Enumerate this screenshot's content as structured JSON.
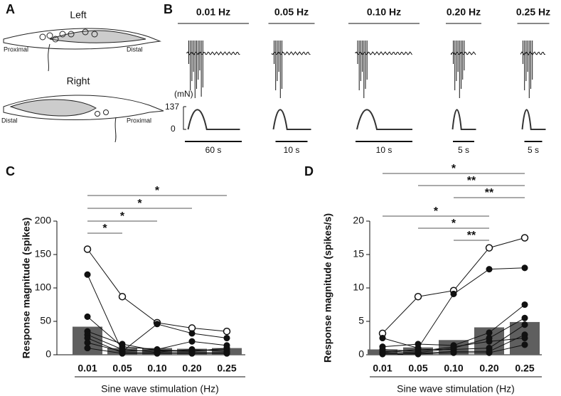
{
  "panel_a": {
    "label": "A",
    "top": {
      "title": "Left",
      "proximal": "Proximal",
      "distal": "Distal"
    },
    "bottom": {
      "title": "Right",
      "distal": "Distal",
      "proximal": "Proximal"
    }
  },
  "panel_b": {
    "label": "B",
    "frequencies": [
      "0.01 Hz",
      "0.05 Hz",
      "0.10 Hz",
      "0.20 Hz",
      "0.25 Hz"
    ],
    "force_unit": "(mN)",
    "force_top": "137",
    "force_bottom": "0",
    "time_bars": [
      "60 s",
      "10 s",
      "10 s",
      "5 s",
      "5 s"
    ]
  },
  "chart_data": [
    {
      "type": "bar",
      "panel": "C",
      "ylabel": "Response magnitude (spikes)",
      "xlabel": "Sine wave stimulation (Hz)",
      "categories": [
        "0.01",
        "0.05",
        "0.10",
        "0.20",
        "0.25"
      ],
      "values": [
        42,
        10,
        10,
        9,
        10
      ],
      "color": "#5f5f5f",
      "ylim": [
        0,
        200
      ],
      "yticks": [
        0,
        50,
        100,
        150,
        200
      ],
      "series": [
        {
          "marker": "open",
          "values": [
            158,
            87,
            48,
            40,
            35
          ]
        },
        {
          "marker": "filled",
          "values": [
            120,
            5,
            46,
            32,
            25
          ]
        },
        {
          "marker": "filled",
          "values": [
            57,
            12,
            8,
            20,
            14
          ]
        },
        {
          "marker": "filled",
          "values": [
            35,
            16,
            6,
            5,
            10
          ]
        },
        {
          "marker": "filled",
          "values": [
            30,
            8,
            4,
            8,
            5
          ]
        },
        {
          "marker": "filled",
          "values": [
            25,
            3,
            3,
            3,
            3
          ]
        },
        {
          "marker": "filled",
          "values": [
            18,
            5,
            7,
            6,
            8
          ]
        },
        {
          "marker": "filled",
          "values": [
            10,
            2,
            2,
            2,
            2
          ]
        }
      ],
      "significance": [
        {
          "from": "0.01",
          "to": "0.25",
          "label": "*"
        },
        {
          "from": "0.01",
          "to": "0.20",
          "label": "*"
        },
        {
          "from": "0.01",
          "to": "0.10",
          "label": "*"
        },
        {
          "from": "0.01",
          "to": "0.05",
          "label": "*"
        }
      ]
    },
    {
      "type": "bar",
      "panel": "D",
      "ylabel": "Response magnitude (spikes/s)",
      "xlabel": "Sine wave stimulation (Hz)",
      "categories": [
        "0.01",
        "0.05",
        "0.10",
        "0.20",
        "0.25"
      ],
      "values": [
        0.8,
        1.1,
        2.2,
        4.1,
        4.9
      ],
      "color": "#5f5f5f",
      "ylim": [
        0,
        20
      ],
      "yticks": [
        0,
        5,
        10,
        15,
        20
      ],
      "series": [
        {
          "marker": "open",
          "values": [
            3.2,
            8.7,
            9.6,
            16.0,
            17.5
          ]
        },
        {
          "marker": "filled",
          "values": [
            2.5,
            1.0,
            9.1,
            12.8,
            13.0
          ]
        },
        {
          "marker": "filled",
          "values": [
            1.2,
            1.6,
            1.4,
            3.3,
            7.5
          ]
        },
        {
          "marker": "filled",
          "values": [
            0.5,
            0.3,
            1.0,
            2.5,
            5.5
          ]
        },
        {
          "marker": "filled",
          "values": [
            0.3,
            0.8,
            0.8,
            1.0,
            4.5
          ]
        },
        {
          "marker": "filled",
          "values": [
            0.2,
            0.2,
            0.5,
            0.5,
            3.0
          ]
        },
        {
          "marker": "filled",
          "values": [
            0.1,
            0.1,
            0.3,
            0.3,
            1.5
          ]
        },
        {
          "marker": "filled",
          "values": [
            0.8,
            0.5,
            1.2,
            2.0,
            2.5
          ]
        }
      ],
      "significance": [
        {
          "from": "0.01",
          "to": "0.25",
          "label": "*"
        },
        {
          "from": "0.05",
          "to": "0.25",
          "label": "**"
        },
        {
          "from": "0.10",
          "to": "0.25",
          "label": "**"
        },
        {
          "from": "0.01",
          "to": "0.20",
          "label": "*"
        },
        {
          "from": "0.05",
          "to": "0.20",
          "label": "*"
        },
        {
          "from": "0.10",
          "to": "0.20",
          "label": "**"
        }
      ]
    }
  ]
}
